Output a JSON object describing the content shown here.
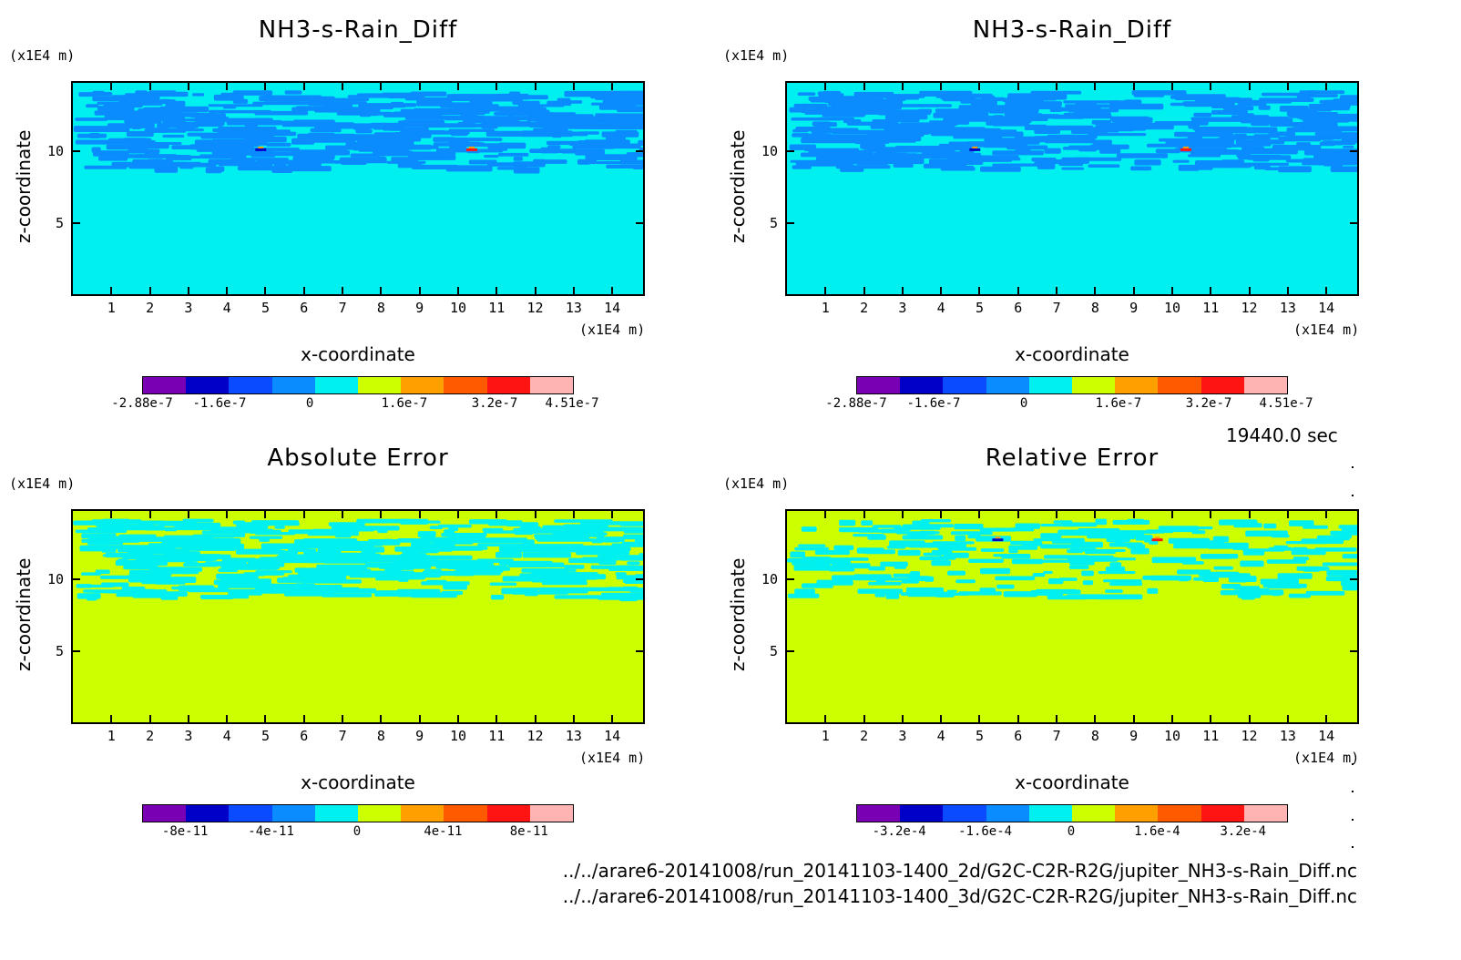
{
  "panels": [
    {
      "id": "p1",
      "title": "NH3-s-Rain_Diff",
      "zunit": "(x1E4 m)",
      "xunit": "(x1E4 m)",
      "xlabel": "x-coordinate",
      "ylabel": "z-coordinate",
      "scheme": "diff",
      "cbar_labels": [
        "-2.88e-7",
        "-1.6e-7",
        "0",
        "1.6e-7",
        "3.2e-7",
        "4.51e-7"
      ]
    },
    {
      "id": "p2",
      "title": "NH3-s-Rain_Diff",
      "zunit": "(x1E4 m)",
      "xunit": "(x1E4 m)",
      "xlabel": "x-coordinate",
      "ylabel": "z-coordinate",
      "scheme": "diff",
      "cbar_labels": [
        "-2.88e-7",
        "-1.6e-7",
        "0",
        "1.6e-7",
        "3.2e-7",
        "4.51e-7"
      ]
    },
    {
      "id": "p3",
      "title": "Absolute Error",
      "zunit": "(x1E4 m)",
      "xunit": "(x1E4 m)",
      "xlabel": "x-coordinate",
      "ylabel": "z-coordinate",
      "scheme": "abs",
      "cbar_labels": [
        "-8e-11",
        "-4e-11",
        "0",
        "4e-11",
        "8e-11"
      ]
    },
    {
      "id": "p4",
      "title": "Relative Error",
      "zunit": "(x1E4 m)",
      "xunit": "(x1E4 m)",
      "xlabel": "x-coordinate",
      "ylabel": "z-coordinate",
      "scheme": "rel",
      "cbar_labels": [
        "-3.2e-4",
        "-1.6e-4",
        "0",
        "1.6e-4",
        "3.2e-4"
      ]
    }
  ],
  "time_label": "19440.0 sec",
  "footer_lines": [
    "../../arare6-20141008/run_20141103-1400_2d/G2C-C2R-R2G/jupiter_NH3-s-Rain_Diff.nc",
    "../../arare6-20141008/run_20141103-1400_3d/G2C-C2R-R2G/jupiter_NH3-s-Rain_Diff.nc"
  ],
  "colors": {
    "palette": [
      "#7a00b4",
      "#0000c8",
      "#0a4bff",
      "#0a8cff",
      "#00f0f0",
      "#ccff00",
      "#ffa000",
      "#ff5a00",
      "#ff1414",
      "#ffb4b4"
    ]
  },
  "chart_data": [
    {
      "type": "heatmap",
      "title": "NH3-s-Rain_Diff",
      "xlabel": "x-coordinate",
      "ylabel": "z-coordinate",
      "x_ticks": [
        1,
        2,
        3,
        4,
        5,
        6,
        7,
        8,
        9,
        10,
        11,
        12,
        13,
        14
      ],
      "y_ticks": [
        5,
        10
      ],
      "xlim": [
        0,
        14.8
      ],
      "ylim": [
        0,
        14.8
      ],
      "x_unit": "(x1E4 m)",
      "y_unit": "(x1E4 m)",
      "colorbar": [
        "-2.88e-7",
        "-1.6e-7",
        "0",
        "1.6e-7",
        "3.2e-7",
        "4.51e-7"
      ]
    },
    {
      "type": "heatmap",
      "title": "NH3-s-Rain_Diff",
      "xlabel": "x-coordinate",
      "ylabel": "z-coordinate",
      "x_ticks": [
        1,
        2,
        3,
        4,
        5,
        6,
        7,
        8,
        9,
        10,
        11,
        12,
        13,
        14
      ],
      "y_ticks": [
        5,
        10
      ],
      "xlim": [
        0,
        14.8
      ],
      "ylim": [
        0,
        14.8
      ],
      "x_unit": "(x1E4 m)",
      "y_unit": "(x1E4 m)",
      "colorbar": [
        "-2.88e-7",
        "-1.6e-7",
        "0",
        "1.6e-7",
        "3.2e-7",
        "4.51e-7"
      ]
    },
    {
      "type": "heatmap",
      "title": "Absolute Error",
      "xlabel": "x-coordinate",
      "ylabel": "z-coordinate",
      "x_ticks": [
        1,
        2,
        3,
        4,
        5,
        6,
        7,
        8,
        9,
        10,
        11,
        12,
        13,
        14
      ],
      "y_ticks": [
        5,
        10
      ],
      "xlim": [
        0,
        14.8
      ],
      "ylim": [
        0,
        14.8
      ],
      "x_unit": "(x1E4 m)",
      "y_unit": "(x1E4 m)",
      "colorbar": [
        "-8e-11",
        "-4e-11",
        "0",
        "4e-11",
        "8e-11"
      ]
    },
    {
      "type": "heatmap",
      "title": "Relative Error",
      "xlabel": "x-coordinate",
      "ylabel": "z-coordinate",
      "x_ticks": [
        1,
        2,
        3,
        4,
        5,
        6,
        7,
        8,
        9,
        10,
        11,
        12,
        13,
        14
      ],
      "y_ticks": [
        5,
        10
      ],
      "xlim": [
        0,
        14.8
      ],
      "ylim": [
        0,
        14.8
      ],
      "x_unit": "(x1E4 m)",
      "y_unit": "(x1E4 m)",
      "colorbar": [
        "-3.2e-4",
        "-1.6e-4",
        "0",
        "1.6e-4",
        "3.2e-4"
      ]
    }
  ]
}
